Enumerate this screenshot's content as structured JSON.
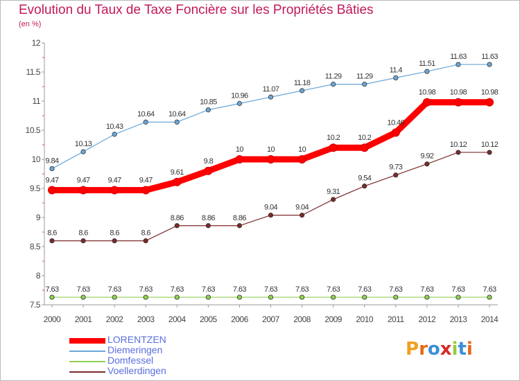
{
  "header": {
    "title": "Evolution du Taux de Taxe Foncière sur les Propriétés Bâties",
    "subtitle": "(en %)"
  },
  "logo": {
    "text": "Proxiti",
    "colors": [
      "#f0a020",
      "#e8681a",
      "#3a8fd9",
      "#d92a2a",
      "#9bc93b",
      "#3a8fd9",
      "#e8681a"
    ]
  },
  "chart_data": {
    "type": "line",
    "title": "Evolution du Taux de Taxe Foncière sur les Propriétés Bâties",
    "ylabel": "(en %)",
    "xlabel": "",
    "x": [
      "2000",
      "2001",
      "2002",
      "2003",
      "2004",
      "2005",
      "2006",
      "2007",
      "2008",
      "2009",
      "2010",
      "2011",
      "2012",
      "2013",
      "2014"
    ],
    "ylim": [
      7.5,
      12
    ],
    "yticks": [
      "7.5",
      "8",
      "8.5",
      "9",
      "9.5",
      "10",
      "10.5",
      "11",
      "11.5",
      "12"
    ],
    "grid": false,
    "legend_position": "bottom-left",
    "series": [
      {
        "name": "LORENTZEN",
        "color": "#ff0000",
        "values": [
          9.47,
          9.47,
          9.47,
          9.47,
          9.61,
          9.8,
          10,
          10,
          10,
          10.2,
          10.2,
          10.46,
          10.98,
          10.98,
          10.98
        ],
        "labels": [
          "9.47",
          "9.47",
          "9.47",
          "9.47",
          "9.61",
          "9.8",
          "10",
          "10",
          "10",
          "10.2",
          "10.2",
          "10.46",
          "10.98",
          "10.98",
          "10.98"
        ]
      },
      {
        "name": "Diemeringen",
        "color": "#6aa7d8",
        "values": [
          9.84,
          10.13,
          10.43,
          10.64,
          10.64,
          10.85,
          10.96,
          11.07,
          11.18,
          11.29,
          11.29,
          11.4,
          11.51,
          11.63,
          11.63
        ],
        "labels": [
          "9.84",
          "10.13",
          "10.43",
          "10.64",
          "10.64",
          "10.85",
          "10.96",
          "11.07",
          "11.18",
          "11.29",
          "11.29",
          "11.4",
          "11.51",
          "11.63",
          "11.63"
        ]
      },
      {
        "name": "Domfessel",
        "color": "#8fd14f",
        "values": [
          7.63,
          7.63,
          7.63,
          7.63,
          7.63,
          7.63,
          7.63,
          7.63,
          7.63,
          7.63,
          7.63,
          7.63,
          7.63,
          7.63,
          7.63
        ],
        "labels": [
          "7.63",
          "7.63",
          "7.63",
          "7.63",
          "7.63",
          "7.63",
          "7.63",
          "7.63",
          "7.63",
          "7.63",
          "7.63",
          "7.63",
          "7.63",
          "7.63",
          "7.63"
        ]
      },
      {
        "name": "Voellerdingen",
        "color": "#7a2a2a",
        "values": [
          8.6,
          8.6,
          8.6,
          8.6,
          8.86,
          8.86,
          8.86,
          9.04,
          9.04,
          9.31,
          9.54,
          9.73,
          9.92,
          10.12,
          10.12
        ],
        "labels": [
          "8.6",
          "8.6",
          "8.6",
          "8.6",
          "8.86",
          "8.86",
          "8.86",
          "9.04",
          "9.04",
          "9.31",
          "9.54",
          "9.73",
          "9.92",
          "10.12",
          "10.12"
        ]
      }
    ]
  }
}
